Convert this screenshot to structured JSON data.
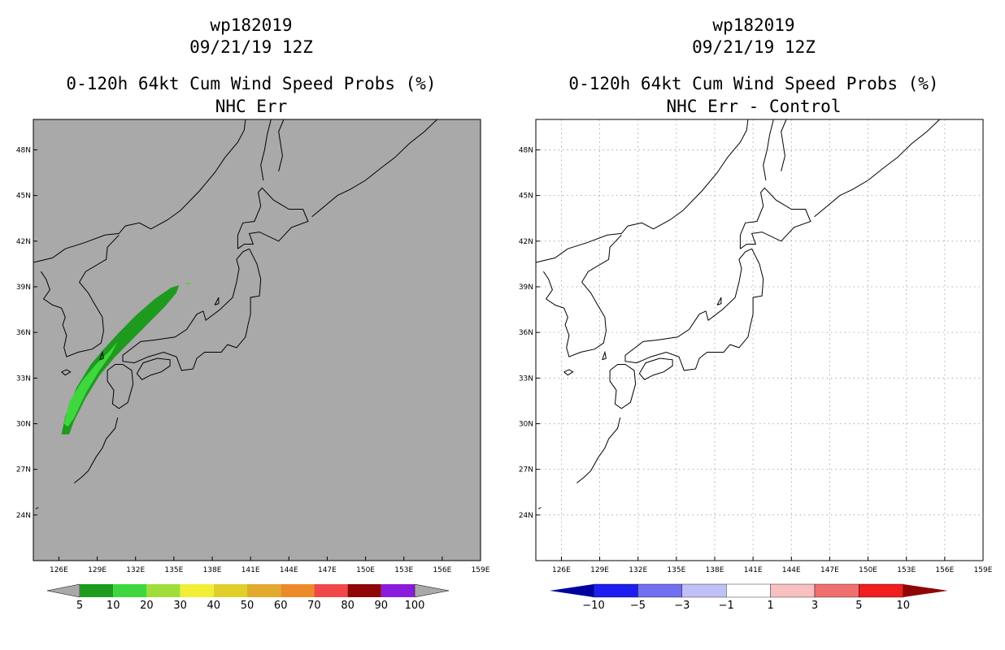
{
  "colors": {
    "ocean_gray": "#a9a9a9",
    "prob_5_10": "#1e9a1e",
    "prob_10_20": "#3ed83e",
    "diff_neutral": "#ffffff"
  },
  "map_extent": {
    "lon": [
      124,
      159
    ],
    "lat": [
      21,
      50
    ]
  },
  "panels": [
    {
      "id": "left",
      "title_storm": "wp182019",
      "title_date": "09/21/19 12Z",
      "title_product": "0-120h 64kt Cum Wind Speed Probs (%)",
      "title_variant": "NHC Err",
      "background": "gray",
      "gridlines": false,
      "lat_ticks": [
        "48N",
        "45N",
        "42N",
        "39N",
        "36N",
        "33N",
        "30N",
        "27N",
        "24N"
      ],
      "lon_ticks": [
        "126E",
        "129E",
        "132E",
        "135E",
        "138E",
        "141E",
        "144E",
        "147E",
        "150E",
        "153E",
        "156E",
        "159E"
      ],
      "colorbar": {
        "type": "prob",
        "colors": [
          "#1e9a1e",
          "#3ed83e",
          "#9fde3a",
          "#f2ee36",
          "#e0cf2b",
          "#e2ab2f",
          "#ec8a2a",
          "#f04848",
          "#8e0606",
          "#8a1adc"
        ],
        "labels": [
          "5",
          "10",
          "20",
          "30",
          "40",
          "50",
          "60",
          "70",
          "80",
          "90",
          "100"
        ]
      }
    },
    {
      "id": "right",
      "title_storm": "wp182019",
      "title_date": "09/21/19 12Z",
      "title_product": "0-120h 64kt Cum Wind Speed Probs (%)",
      "title_variant": "NHC Err - Control",
      "background": "white",
      "gridlines": true,
      "lat_ticks": [
        "48N",
        "45N",
        "42N",
        "39N",
        "36N",
        "33N",
        "30N",
        "27N",
        "24N"
      ],
      "lon_ticks": [
        "126E",
        "129E",
        "132E",
        "135E",
        "138E",
        "141E",
        "144E",
        "147E",
        "150E",
        "153E",
        "156E",
        "159E"
      ],
      "colorbar": {
        "type": "diff",
        "colors": [
          "#0000a0",
          "#1e1ef0",
          "#7070f0",
          "#c0c0f8",
          "#ffffff",
          "#f8c0c0",
          "#f07070",
          "#f01e1e",
          "#8e0606"
        ],
        "labels": [
          "-10",
          "-5",
          "-3",
          "-1",
          "1",
          "3",
          "5",
          "10"
        ]
      }
    }
  ]
}
